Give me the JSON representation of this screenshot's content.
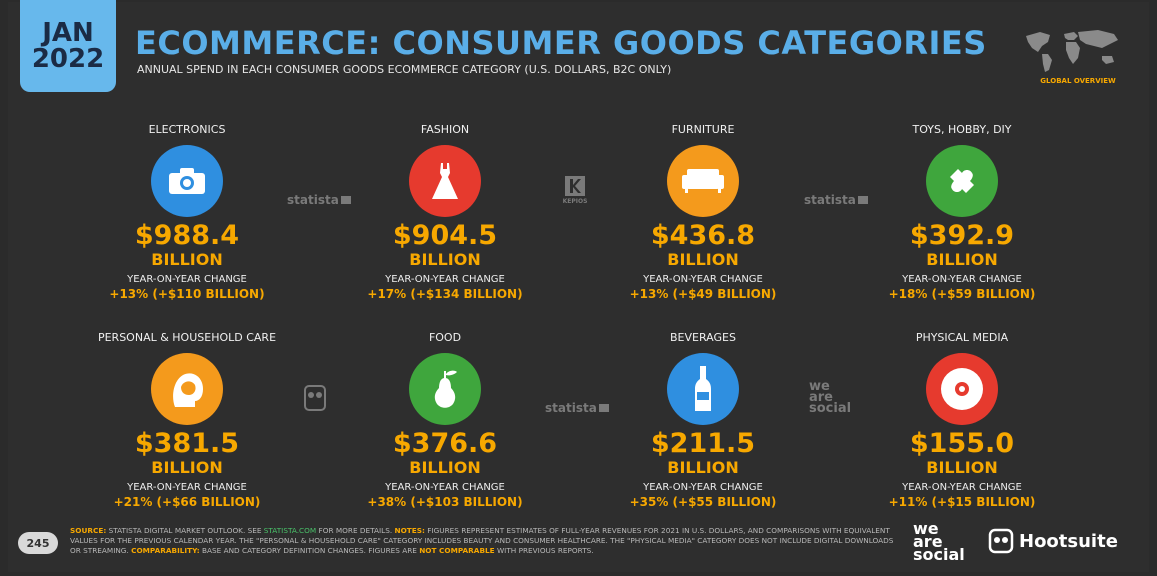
{
  "header": {
    "date_month": "JAN",
    "date_year": "2022",
    "title": "ECOMMERCE: CONSUMER GOODS CATEGORIES",
    "subtitle": "ANNUAL SPEND IN EACH CONSUMER GOODS ECOMMERCE CATEGORY (U.S. DOLLARS, B2C ONLY)",
    "global_label": "GLOBAL OVERVIEW"
  },
  "colors": {
    "accent": "#f7a800",
    "title_blue": "#5aaee8",
    "background": "#2e2e2e"
  },
  "categories": [
    {
      "name": "ELECTRONICS",
      "value": "$988.4",
      "unit": "BILLION",
      "yoy_label": "YEAR-ON-YEAR CHANGE",
      "yoy": "+13% (+$110 BILLION)",
      "icon": "camera-icon",
      "color": "#2f8fe0"
    },
    {
      "name": "FASHION",
      "value": "$904.5",
      "unit": "BILLION",
      "yoy_label": "YEAR-ON-YEAR CHANGE",
      "yoy": "+17% (+$134 BILLION)",
      "icon": "dress-icon",
      "color": "#e63a2e"
    },
    {
      "name": "FURNITURE",
      "value": "$436.8",
      "unit": "BILLION",
      "yoy_label": "YEAR-ON-YEAR CHANGE",
      "yoy": "+13% (+$49 BILLION)",
      "icon": "sofa-icon",
      "color": "#f49a1c"
    },
    {
      "name": "TOYS, HOBBY, DIY",
      "value": "$392.9",
      "unit": "BILLION",
      "yoy_label": "YEAR-ON-YEAR CHANGE",
      "yoy": "+18% (+$59 BILLION)",
      "icon": "puzzle-icon",
      "color": "#3fa63d"
    },
    {
      "name": "PERSONAL & HOUSEHOLD CARE",
      "value": "$381.5",
      "unit": "BILLION",
      "yoy_label": "YEAR-ON-YEAR CHANGE",
      "yoy": "+21% (+$66 BILLION)",
      "icon": "hair-care-icon",
      "color": "#f49a1c"
    },
    {
      "name": "FOOD",
      "value": "$376.6",
      "unit": "BILLION",
      "yoy_label": "YEAR-ON-YEAR CHANGE",
      "yoy": "+38% (+$103 BILLION)",
      "icon": "pear-icon",
      "color": "#3fa63d"
    },
    {
      "name": "BEVERAGES",
      "value": "$211.5",
      "unit": "BILLION",
      "yoy_label": "YEAR-ON-YEAR CHANGE",
      "yoy": "+35% (+$55 BILLION)",
      "icon": "bottle-icon",
      "color": "#2f8fe0"
    },
    {
      "name": "PHYSICAL MEDIA",
      "value": "$155.0",
      "unit": "BILLION",
      "yoy_label": "YEAR-ON-YEAR CHANGE",
      "yoy": "+11% (+$15 BILLION)",
      "icon": "disc-icon",
      "color": "#e63a2e"
    }
  ],
  "source_logos": {
    "statista": "statista",
    "kepios": "KEPIOS",
    "we_are_social_1": "we",
    "we_are_social_2": "are",
    "we_are_social_3": "social"
  },
  "footer": {
    "page_number": "245",
    "source_label": "SOURCE:",
    "source_text": " STATISTA DIGITAL MARKET OUTLOOK. SEE ",
    "source_link": "STATISTA.COM",
    "source_text2": " FOR MORE DETAILS. ",
    "notes_label": "NOTES:",
    "notes_text": " FIGURES REPRESENT ESTIMATES OF FULL-YEAR REVENUES FOR 2021 IN U.S. DOLLARS, AND COMPARISONS WITH EQUIVALENT VALUES FOR THE PREVIOUS CALENDAR YEAR. THE \"PERSONAL & HOUSEHOLD CARE\" CATEGORY INCLUDES BEAUTY AND CONSUMER HEALTHCARE. THE \"PHYSICAL MEDIA\" CATEGORY DOES NOT INCLUDE DIGITAL DOWNLOADS OR STREAMING. ",
    "comparability_label": "COMPARABILITY:",
    "comparability_text": " BASE AND CATEGORY DEFINITION CHANGES. FIGURES ARE ",
    "not_comparable": "NOT COMPARABLE",
    "comparability_text2": " WITH PREVIOUS REPORTS.",
    "was_1": "we",
    "was_2": "are",
    "was_3": "social",
    "hootsuite": "Hootsuite"
  }
}
